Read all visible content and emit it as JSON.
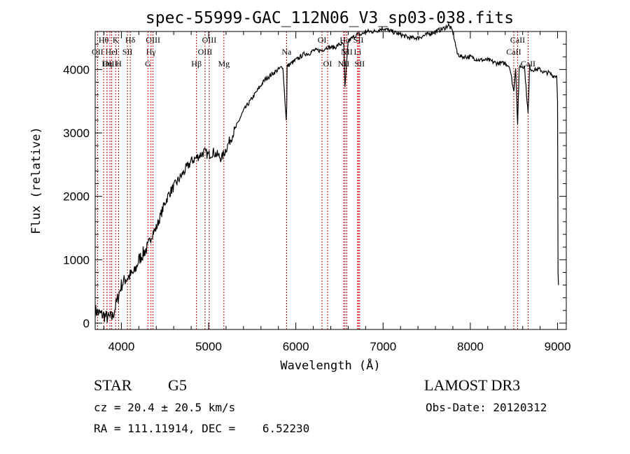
{
  "chart_data": {
    "type": "line",
    "title": "spec-55999-GAC_112N06_V3_sp03-038.fits",
    "xlabel": "Wavelength (Å)",
    "ylabel": "Flux (relative)",
    "xlim": [
      3700,
      9100
    ],
    "ylim": [
      -100,
      4600
    ],
    "xticks": [
      4000,
      5000,
      6000,
      7000,
      8000,
      9000
    ],
    "yticks": [
      0,
      1000,
      2000,
      3000,
      4000
    ],
    "grid": false,
    "series": [
      {
        "name": "flux",
        "x": [
          3700,
          3750,
          3800,
          3850,
          3900,
          3950,
          4000,
          4050,
          4100,
          4150,
          4200,
          4250,
          4300,
          4350,
          4400,
          4450,
          4500,
          4550,
          4600,
          4650,
          4700,
          4750,
          4800,
          4850,
          4900,
          4950,
          5000,
          5050,
          5100,
          5150,
          5200,
          5250,
          5300,
          5350,
          5400,
          5450,
          5500,
          5550,
          5600,
          5650,
          5700,
          5750,
          5800,
          5850,
          5890,
          5895,
          5900,
          5950,
          6000,
          6050,
          6100,
          6150,
          6200,
          6250,
          6300,
          6350,
          6400,
          6450,
          6500,
          6550,
          6563,
          6600,
          6650,
          6700,
          6750,
          6800,
          6900,
          7000,
          7100,
          7200,
          7300,
          7400,
          7500,
          7600,
          7700,
          7750,
          7800,
          7850,
          7900,
          8000,
          8100,
          8200,
          8300,
          8400,
          8450,
          8498,
          8520,
          8542,
          8560,
          8600,
          8620,
          8662,
          8680,
          8700,
          8750,
          8800,
          8850,
          8900,
          8950,
          8990,
          9000,
          9005,
          9010
        ],
        "values": [
          200,
          150,
          120,
          80,
          100,
          350,
          600,
          700,
          750,
          800,
          1000,
          1100,
          1200,
          1400,
          1500,
          1700,
          1900,
          2050,
          2150,
          2250,
          2350,
          2450,
          2550,
          2600,
          2650,
          2700,
          2650,
          2700,
          2650,
          2600,
          2750,
          2900,
          3050,
          3200,
          3350,
          3450,
          3550,
          3650,
          3750,
          3850,
          3900,
          3950,
          4000,
          4050,
          3200,
          3400,
          4050,
          4100,
          4150,
          4200,
          4250,
          4250,
          4300,
          4300,
          4300,
          4350,
          4350,
          4350,
          4400,
          4400,
          3700,
          4450,
          4500,
          4550,
          4550,
          4600,
          4600,
          4650,
          4600,
          4550,
          4500,
          4500,
          4550,
          4600,
          4650,
          4700,
          4600,
          4250,
          4200,
          4200,
          4150,
          4150,
          4100,
          4100,
          4050,
          3650,
          4050,
          3100,
          4050,
          4050,
          4050,
          3300,
          4050,
          4000,
          4000,
          4000,
          3950,
          3950,
          3900,
          3900,
          3500,
          800,
          600
        ]
      }
    ],
    "lines": [
      {
        "label": "Hθ",
        "wave": 3797,
        "row": 1
      },
      {
        "label": "OII",
        "wave": 3727,
        "row": 2
      },
      {
        "label": "OIII",
        "wave": 3869,
        "row": 3
      },
      {
        "label": "K",
        "wave": 3934,
        "row": 1
      },
      {
        "label": "HeI",
        "wave": 3889,
        "row": 2
      },
      {
        "label": "Hη",
        "wave": 3835,
        "row": 3
      },
      {
        "label": "Hδ",
        "wave": 4102,
        "row": 1
      },
      {
        "label": "SII",
        "wave": 4070,
        "row": 2
      },
      {
        "label": "H",
        "wave": 3968,
        "row": 3
      },
      {
        "label": "OIII",
        "wave": 4363,
        "row": 1
      },
      {
        "label": "Hγ",
        "wave": 4340,
        "row": 2
      },
      {
        "label": "G",
        "wave": 4304,
        "row": 3
      },
      {
        "label": "OIII",
        "wave": 5007,
        "row": 1
      },
      {
        "label": "OIII",
        "wave": 4959,
        "row": 2
      },
      {
        "label": "Hβ",
        "wave": 4861,
        "row": 3
      },
      {
        "label": "Mg",
        "wave": 5175,
        "row": 3
      },
      {
        "label": "Na",
        "wave": 5893,
        "row": 2
      },
      {
        "label": "OI",
        "wave": 6300,
        "row": 1
      },
      {
        "label": "OI",
        "wave": 6364,
        "row": 3
      },
      {
        "label": "Hα",
        "wave": 6563,
        "row": 1
      },
      {
        "label": "SII",
        "wave": 6717,
        "row": 1
      },
      {
        "label": "NII",
        "wave": 6584,
        "row": 2
      },
      {
        "label": "Li",
        "wave": 6708,
        "row": 2
      },
      {
        "label": "NII",
        "wave": 6548,
        "row": 3
      },
      {
        "label": "SII",
        "wave": 6731,
        "row": 3
      },
      {
        "label": "CaII",
        "wave": 8542,
        "row": 1
      },
      {
        "label": "CaII",
        "wave": 8498,
        "row": 2
      },
      {
        "label": "CaII",
        "wave": 8662,
        "row": 3
      }
    ]
  },
  "info": {
    "object_class": "STAR",
    "subclass": "G5",
    "survey": "LAMOST DR3",
    "redshift": "cz = 20.4 ± 20.5 km/s",
    "obs_date": "Obs-Date: 20120312",
    "coords": "RA = 111.11914, DEC =    6.52230"
  }
}
